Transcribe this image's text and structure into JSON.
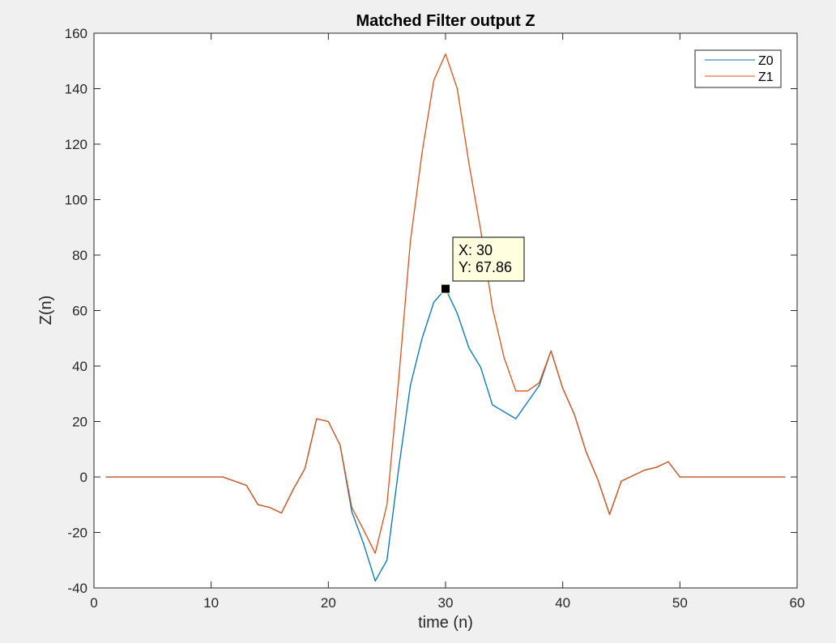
{
  "chart_data": {
    "type": "line",
    "title": "Matched Filter output Z",
    "xlabel": "time (n)",
    "ylabel": "Z(n)",
    "xlim": [
      0,
      60
    ],
    "ylim": [
      -40,
      160
    ],
    "xticks": [
      0,
      10,
      20,
      30,
      40,
      50,
      60
    ],
    "yticks": [
      -40,
      -20,
      0,
      20,
      40,
      60,
      80,
      100,
      120,
      140,
      160
    ],
    "grid": false,
    "legend_position": "top-right",
    "series": [
      {
        "name": "Z0",
        "color": "#0072BD",
        "x": [
          1,
          2,
          3,
          4,
          5,
          6,
          7,
          8,
          9,
          10,
          11,
          12,
          13,
          14,
          15,
          16,
          17,
          18,
          19,
          20,
          21,
          22,
          23,
          24,
          25,
          26,
          27,
          28,
          29,
          30,
          31,
          32,
          33,
          34,
          35,
          36,
          37,
          38,
          39,
          40,
          41,
          42,
          43,
          44,
          45,
          46,
          47,
          48,
          49,
          50,
          51,
          52,
          53,
          54,
          55,
          56,
          57,
          58,
          59
        ],
        "y": [
          0,
          0,
          0,
          0,
          0,
          0,
          0,
          0,
          0,
          0,
          0,
          -1.5,
          -3,
          -10,
          -11,
          -13,
          -4.5,
          3,
          21,
          20,
          11.5,
          -12.5,
          -24,
          -37.5,
          -30,
          3,
          33,
          50,
          63,
          67.86,
          59,
          46.5,
          39.5,
          26,
          23.5,
          21,
          27,
          33,
          45.5,
          32,
          22.5,
          9,
          -1,
          -13.5,
          -1.5,
          0.5,
          2.5,
          3.5,
          5.5,
          0,
          0,
          0,
          0,
          0,
          0,
          0,
          0,
          0,
          0
        ]
      },
      {
        "name": "Z1",
        "color": "#D95319",
        "x": [
          1,
          2,
          3,
          4,
          5,
          6,
          7,
          8,
          9,
          10,
          11,
          12,
          13,
          14,
          15,
          16,
          17,
          18,
          19,
          20,
          21,
          22,
          23,
          24,
          25,
          26,
          27,
          28,
          29,
          30,
          31,
          32,
          33,
          34,
          35,
          36,
          37,
          38,
          39,
          40,
          41,
          42,
          43,
          44,
          45,
          46,
          47,
          48,
          49,
          50,
          51,
          52,
          53,
          54,
          55,
          56,
          57,
          58,
          59
        ],
        "y": [
          0,
          0,
          0,
          0,
          0,
          0,
          0,
          0,
          0,
          0,
          0,
          -1.5,
          -3,
          -10,
          -11,
          -13,
          -4.5,
          3,
          21,
          20,
          11.5,
          -11,
          -19,
          -27.5,
          -10,
          35,
          85,
          117,
          143,
          152.5,
          140,
          113,
          89,
          61,
          43,
          31,
          31,
          34,
          45.5,
          32,
          22.5,
          9,
          -1,
          -13.5,
          -1.5,
          0.5,
          2.5,
          3.5,
          5.5,
          0,
          0,
          0,
          0,
          0,
          0,
          0,
          0,
          0,
          0
        ]
      }
    ],
    "datatip": {
      "series": "Z0",
      "x": 30,
      "y": 67.86,
      "x_text": "X: 30",
      "y_text": "Y: 67.86"
    }
  }
}
